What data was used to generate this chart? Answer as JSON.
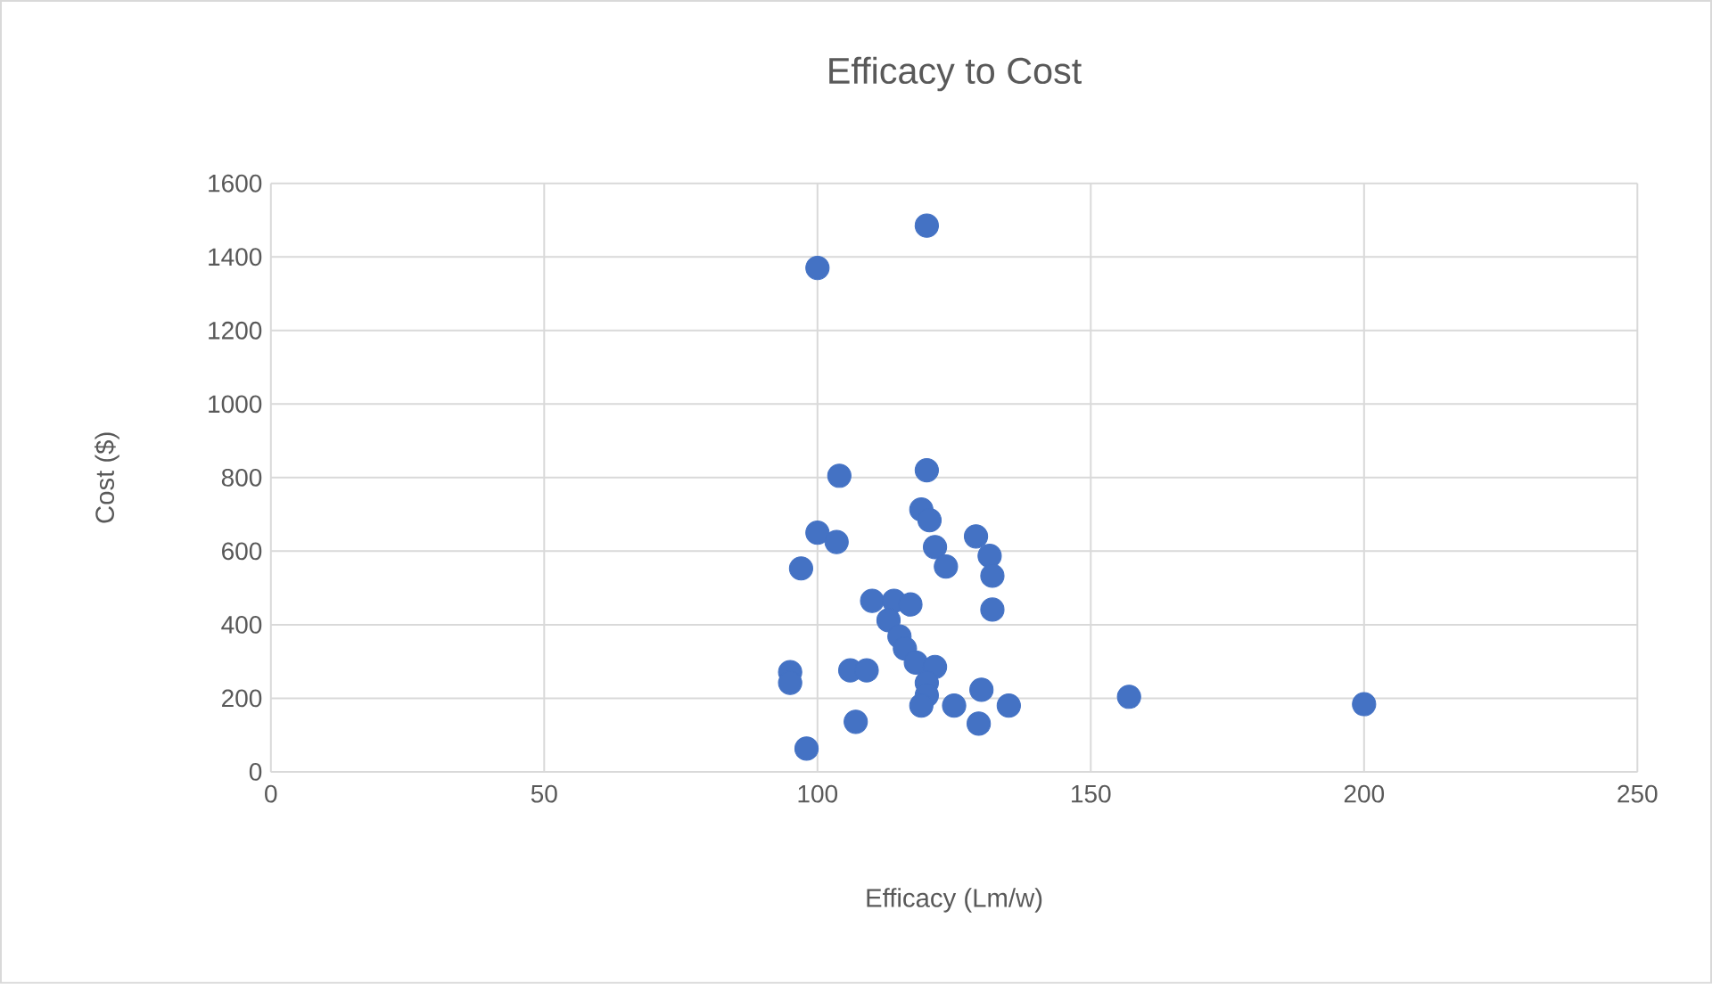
{
  "chart_data": {
    "type": "scatter",
    "title": "Efficacy to Cost",
    "xlabel": "Efficacy (Lm/w)",
    "ylabel": "Cost ($)",
    "xlim": [
      0,
      250
    ],
    "xticks": [
      0,
      50,
      100,
      150,
      200,
      250
    ],
    "ylim": [
      0,
      1600
    ],
    "yticks": [
      0,
      200,
      400,
      600,
      800,
      1000,
      1200,
      1400,
      1600
    ],
    "grid": true,
    "marker": "circle",
    "legend": false,
    "series": [
      {
        "color": "#4472c4",
        "x": [
          100,
          120,
          104,
          120,
          100,
          103.5,
          97,
          119,
          120.5,
          129,
          131.5,
          121.5,
          123.5,
          132,
          132,
          110,
          114,
          117,
          113,
          115,
          116,
          118,
          121.5,
          120,
          120,
          119,
          95,
          95,
          106,
          109,
          107,
          98,
          125,
          130,
          129.5,
          135,
          157,
          200
        ],
        "values": [
          1370,
          1485,
          805,
          820,
          650,
          625,
          553,
          713,
          684,
          640,
          587,
          611,
          558,
          533,
          441,
          465,
          465,
          455,
          412,
          368,
          335,
          297,
          285,
          242,
          208,
          180,
          271,
          242,
          276,
          276,
          136,
          63,
          180,
          223,
          131,
          180,
          204,
          184
        ]
      }
    ]
  }
}
